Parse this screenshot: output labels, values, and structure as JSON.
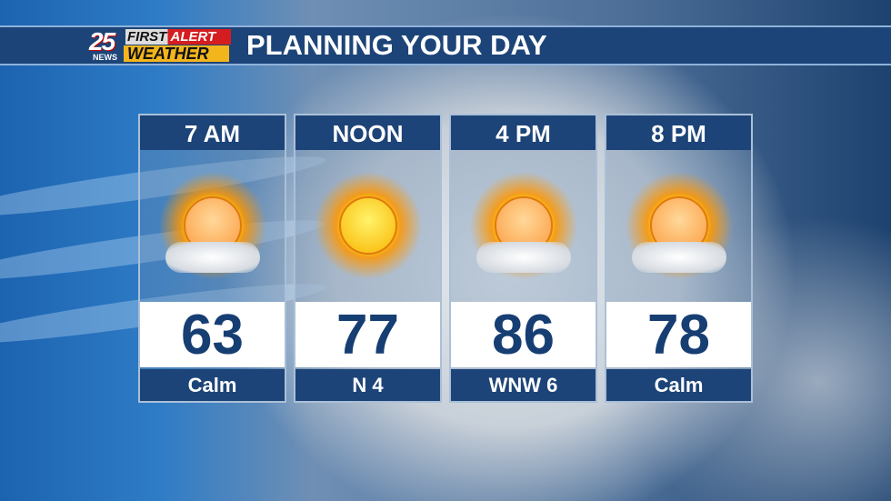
{
  "logo": {
    "number": "25",
    "news": "NEWS",
    "first": "FIRST",
    "alert": "ALERT",
    "weather": "WEATHER"
  },
  "title": "PLANNING YOUR DAY",
  "colors": {
    "bar": "#1d4478",
    "temp_text": "#163e73",
    "alert_red": "#d51d20",
    "weather_yellow": "#f2b51c"
  },
  "periods": [
    {
      "time": "7 AM",
      "temp": "63",
      "wind": "Calm",
      "icon": "partly-sunny-icon"
    },
    {
      "time": "NOON",
      "temp": "77",
      "wind": "N 4",
      "icon": "sunny-icon"
    },
    {
      "time": "4 PM",
      "temp": "86",
      "wind": "WNW 6",
      "icon": "partly-sunny-icon"
    },
    {
      "time": "8 PM",
      "temp": "78",
      "wind": "Calm",
      "icon": "partly-sunny-icon"
    }
  ]
}
